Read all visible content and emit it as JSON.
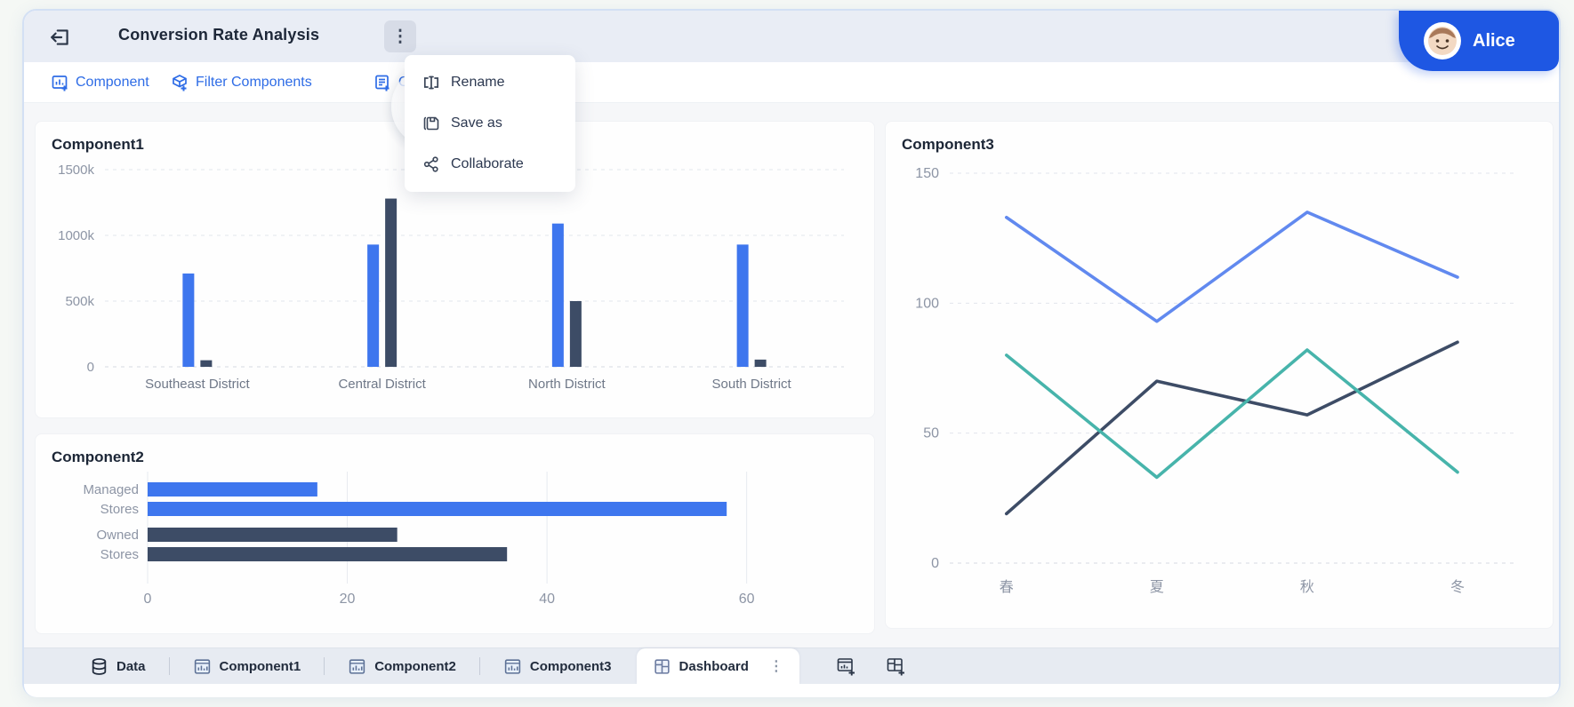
{
  "header": {
    "title": "Conversion Rate Analysis",
    "menu_glyph": "⋮",
    "user": {
      "name": "Alice"
    }
  },
  "toolbar": {
    "items": [
      {
        "label": "Component"
      },
      {
        "label": "Filter Components"
      },
      {
        "label": "Ot"
      }
    ]
  },
  "context_menu": {
    "items": [
      {
        "label": "Rename"
      },
      {
        "label": "Save as"
      },
      {
        "label": "Collaborate"
      }
    ]
  },
  "tabbar": {
    "tabs": [
      {
        "label": "Data"
      },
      {
        "label": "Component1"
      },
      {
        "label": "Component2"
      },
      {
        "label": "Component3"
      },
      {
        "label": "Dashboard",
        "active": true
      }
    ],
    "dashboard_menu_glyph": "⋮"
  },
  "colors": {
    "accent_blue": "#2e6ce6",
    "badge_blue": "#1e57e3",
    "bar_blue": "#3e76ee",
    "bar_dark": "#3d4c66",
    "line_blue": "#6189ef",
    "line_teal": "#47b4ab",
    "line_dark": "#3d4c66"
  },
  "chart_data": [
    {
      "type": "bar",
      "title": "Component1",
      "categories": [
        "Southeast District",
        "Central District",
        "North District",
        "South District"
      ],
      "series": [
        {
          "name": "series-blue",
          "color": "#3e76ee",
          "values": [
            710,
            930,
            1090,
            930
          ]
        },
        {
          "name": "series-dark",
          "color": "#3d4c66",
          "values": [
            50,
            1280,
            500,
            55
          ]
        }
      ],
      "ylim": [
        0,
        1500
      ],
      "yticks": [
        {
          "v": 0,
          "label": "0"
        },
        {
          "v": 500,
          "label": "500k"
        },
        {
          "v": 1000,
          "label": "1000k"
        },
        {
          "v": 1500,
          "label": "1500k"
        }
      ],
      "grid": "dashed-horizontal",
      "legend": "none"
    },
    {
      "type": "hbar",
      "title": "Component2",
      "groups": [
        {
          "label_lines": [
            "Managed",
            "Stores"
          ],
          "color": "#3e76ee",
          "values": [
            17,
            58
          ]
        },
        {
          "label_lines": [
            "Owned",
            "Stores"
          ],
          "color": "#3d4c66",
          "values": [
            25,
            36
          ]
        }
      ],
      "xlim": [
        0,
        66
      ],
      "xticks": [
        0,
        20,
        40,
        60
      ],
      "grid": "solid-vertical",
      "legend": "none"
    },
    {
      "type": "line",
      "title": "Component3",
      "x": [
        "春",
        "夏",
        "秋",
        "冬"
      ],
      "series": [
        {
          "name": "series-dark",
          "color": "#3d4c66",
          "values": [
            19,
            70,
            57,
            85
          ]
        },
        {
          "name": "series-teal",
          "color": "#47b4ab",
          "values": [
            80,
            33,
            82,
            35
          ]
        },
        {
          "name": "series-blue",
          "color": "#6189ef",
          "values": [
            133,
            93,
            135,
            110
          ]
        }
      ],
      "ylim": [
        0,
        150
      ],
      "yticks": [
        {
          "v": 0,
          "label": "0"
        },
        {
          "v": 50,
          "label": "50"
        },
        {
          "v": 100,
          "label": "100"
        },
        {
          "v": 150,
          "label": "150"
        }
      ],
      "grid": "dashed-horizontal",
      "legend": "none"
    }
  ]
}
